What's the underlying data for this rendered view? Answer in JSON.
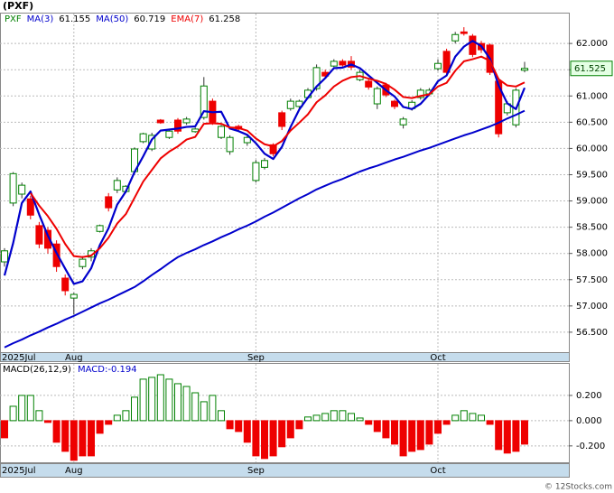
{
  "chart_data": [
    {
      "type": "candlestick",
      "title": "(PXF)",
      "categories": [
        "2025Jul",
        null,
        null,
        null,
        null,
        null,
        null,
        null,
        "Aug",
        null,
        null,
        null,
        null,
        null,
        null,
        null,
        null,
        null,
        null,
        null,
        null,
        null,
        null,
        null,
        null,
        null,
        null,
        null,
        null,
        "Sep",
        null,
        null,
        null,
        null,
        null,
        null,
        null,
        null,
        null,
        null,
        null,
        null,
        null,
        null,
        null,
        null,
        null,
        null,
        null,
        null,
        "Oct",
        null,
        null,
        null,
        null,
        null,
        null,
        null,
        null,
        null,
        null
      ],
      "ylim": [
        56.12,
        62.57
      ],
      "yticks": [
        {
          "value": 56.5,
          "label": "56.500"
        },
        {
          "value": 57,
          "label": "57.000"
        },
        {
          "value": 57.5,
          "label": "57.500"
        },
        {
          "value": 58,
          "label": "58.000"
        },
        {
          "value": 58.5,
          "label": "58.500"
        },
        {
          "value": 59,
          "label": "59.000"
        },
        {
          "value": 59.5,
          "label": "59.500"
        },
        {
          "value": 60,
          "label": "60.000"
        },
        {
          "value": 60.5,
          "label": "60.500"
        },
        {
          "value": 61,
          "label": "61.000"
        },
        {
          "value": 61.5,
          "label": "61.500"
        },
        {
          "value": 62,
          "label": "62.000"
        }
      ],
      "grid": true,
      "candles": {
        "name": "PXF",
        "color": "#008000",
        "down_color": "#ee0000",
        "last_label": "61.525",
        "open": [
          57.84,
          58.96,
          59.13,
          59.04,
          58.53,
          58.44,
          58.18,
          57.53,
          57.15,
          57.75,
          57.93,
          58.42,
          59.08,
          59.21,
          59.18,
          59.56,
          60.13,
          59.99,
          60.54,
          60.21,
          60.54,
          60.49,
          60.32,
          60.59,
          60.9,
          60.21,
          59.94,
          60.42,
          60.11,
          59.39,
          59.64,
          60.07,
          60.68,
          60.76,
          60.8,
          60.97,
          61.14,
          61.45,
          61.57,
          61.66,
          61.66,
          61.31,
          61.28,
          60.85,
          61.21,
          60.9,
          60.45,
          60.76,
          60.97,
          61.04,
          61.52,
          61.85,
          62.05,
          62.22,
          62.14,
          62.0,
          61.97,
          61.28,
          60.68,
          60.45,
          61.49
        ],
        "high": [
          58.1,
          59.55,
          59.35,
          59.1,
          58.6,
          58.5,
          58.25,
          57.6,
          57.25,
          57.95,
          58.1,
          58.55,
          59.15,
          59.45,
          59.3,
          60.02,
          60.3,
          60.3,
          60.56,
          60.36,
          60.58,
          60.6,
          60.4,
          61.36,
          60.95,
          60.45,
          60.25,
          60.45,
          60.25,
          59.78,
          59.82,
          60.1,
          60.72,
          60.95,
          60.93,
          61.15,
          61.6,
          61.5,
          61.7,
          61.7,
          61.76,
          61.5,
          61.32,
          61.18,
          61.25,
          60.93,
          60.6,
          60.92,
          61.15,
          61.15,
          61.7,
          61.9,
          62.22,
          62.31,
          62.18,
          62.05,
          62.0,
          61.35,
          60.9,
          61.15,
          61.65
        ],
        "low": [
          57.75,
          58.9,
          59.05,
          58.65,
          58.1,
          58.0,
          57.65,
          57.2,
          56.84,
          57.7,
          57.85,
          58.4,
          58.8,
          59.15,
          59.15,
          59.5,
          60.1,
          59.95,
          60.47,
          60.18,
          60.28,
          60.45,
          60.3,
          60.55,
          60.45,
          60.18,
          59.88,
          60.33,
          60.05,
          59.35,
          59.6,
          59.85,
          60.35,
          60.72,
          60.75,
          60.94,
          61.1,
          61.35,
          61.55,
          61.56,
          61.5,
          61.28,
          61.12,
          60.75,
          60.98,
          60.75,
          60.38,
          60.72,
          60.93,
          61.0,
          61.48,
          61.4,
          62.0,
          62.15,
          61.74,
          61.82,
          61.4,
          60.21,
          60.63,
          60.4,
          61.45
        ],
        "close": [
          58.05,
          59.52,
          59.3,
          58.73,
          58.18,
          58.1,
          57.75,
          57.29,
          57.22,
          57.89,
          58.05,
          58.53,
          58.87,
          59.39,
          59.28,
          59.99,
          60.28,
          60.25,
          60.49,
          60.33,
          60.33,
          60.56,
          60.37,
          61.19,
          60.5,
          60.42,
          60.21,
          60.37,
          60.21,
          59.73,
          59.77,
          59.9,
          60.42,
          60.9,
          60.9,
          61.11,
          61.54,
          61.38,
          61.66,
          61.59,
          61.55,
          61.45,
          61.17,
          61.14,
          61.02,
          60.8,
          60.56,
          60.88,
          61.11,
          61.11,
          61.62,
          61.45,
          62.17,
          62.19,
          61.79,
          61.88,
          61.45,
          60.28,
          60.85,
          61.11,
          61.525
        ]
      },
      "series": [
        {
          "name": "MA(3)",
          "color": "#0000cc",
          "last_label": "61.155",
          "values": [
            57.58,
            58.2,
            58.96,
            59.18,
            58.74,
            58.34,
            58.01,
            57.71,
            57.42,
            57.47,
            57.72,
            58.16,
            58.48,
            58.93,
            59.18,
            59.55,
            59.85,
            60.17,
            60.34,
            60.36,
            60.38,
            60.41,
            60.42,
            60.71,
            60.69,
            60.7,
            60.38,
            60.33,
            60.26,
            60.1,
            59.9,
            59.8,
            60.03,
            60.41,
            60.74,
            60.97,
            61.18,
            61.34,
            61.53,
            61.54,
            61.6,
            61.53,
            61.39,
            61.25,
            61.11,
            60.99,
            60.79,
            60.75,
            60.85,
            61.03,
            61.28,
            61.39,
            61.75,
            61.94,
            62.05,
            61.95,
            61.71,
            61.2,
            60.86,
            60.75,
            61.155
          ]
        },
        {
          "name": "MA(50)",
          "color": "#0000cc",
          "last_label": "60.719",
          "values": [
            56.21,
            56.29,
            56.36,
            56.44,
            56.51,
            56.59,
            56.66,
            56.74,
            56.81,
            56.89,
            56.97,
            57.05,
            57.12,
            57.2,
            57.28,
            57.36,
            57.47,
            57.59,
            57.7,
            57.82,
            57.93,
            58.01,
            58.08,
            58.16,
            58.23,
            58.31,
            58.38,
            58.46,
            58.53,
            58.61,
            58.7,
            58.78,
            58.87,
            58.96,
            59.05,
            59.13,
            59.22,
            59.29,
            59.36,
            59.42,
            59.49,
            59.56,
            59.62,
            59.67,
            59.73,
            59.79,
            59.84,
            59.9,
            59.96,
            60.01,
            60.07,
            60.13,
            60.19,
            60.25,
            60.3,
            60.36,
            60.42,
            60.49,
            60.57,
            60.64,
            60.719
          ]
        },
        {
          "name": "EMA(7)",
          "color": "#ee0000",
          "last_label": "61.258",
          "values": [
            null,
            null,
            null,
            59.15,
            58.91,
            58.71,
            58.47,
            58.18,
            57.95,
            57.93,
            57.96,
            58.1,
            58.3,
            58.57,
            58.75,
            59.06,
            59.37,
            59.59,
            59.81,
            59.94,
            60.04,
            60.17,
            60.22,
            60.47,
            60.48,
            60.47,
            60.4,
            60.39,
            60.34,
            60.19,
            60.08,
            60.04,
            60.14,
            60.34,
            60.49,
            60.65,
            60.88,
            61.01,
            61.18,
            61.29,
            61.36,
            61.38,
            61.33,
            61.29,
            61.23,
            61.12,
            60.98,
            60.96,
            61.0,
            61.03,
            61.18,
            61.25,
            61.48,
            61.66,
            61.7,
            61.75,
            61.67,
            61.32,
            61.2,
            61.18,
            61.258
          ]
        }
      ]
    },
    {
      "type": "bar",
      "title": "MACD(26,12,9)",
      "subtitle": "MACD:-0.194",
      "categories": [
        "2025Jul",
        null,
        null,
        null,
        null,
        null,
        null,
        null,
        "Aug",
        null,
        null,
        null,
        null,
        null,
        null,
        null,
        null,
        null,
        null,
        null,
        null,
        null,
        null,
        null,
        null,
        null,
        null,
        null,
        null,
        "Sep",
        null,
        null,
        null,
        null,
        null,
        null,
        null,
        null,
        null,
        null,
        null,
        null,
        null,
        null,
        null,
        null,
        null,
        null,
        null,
        null,
        "Oct",
        null,
        null,
        null,
        null,
        null,
        null,
        null,
        null,
        null,
        null
      ],
      "ylim": [
        -0.33,
        0.45
      ],
      "yticks": [
        {
          "value": -0.2,
          "label": "-0.200"
        },
        {
          "value": 0,
          "label": "0.000"
        },
        {
          "value": 0.2,
          "label": "0.200"
        }
      ],
      "grid": true,
      "color": "#008000",
      "negative_color": "#ee0000",
      "values": [
        -0.136,
        0.114,
        0.2,
        0.2,
        0.079,
        -0.014,
        -0.171,
        -0.243,
        -0.314,
        -0.279,
        -0.279,
        -0.1,
        -0.029,
        0.043,
        0.079,
        0.186,
        0.329,
        0.343,
        0.364,
        0.329,
        0.293,
        0.271,
        0.221,
        0.15,
        0.2,
        0.079,
        -0.064,
        -0.086,
        -0.171,
        -0.279,
        -0.3,
        -0.279,
        -0.207,
        -0.136,
        -0.064,
        0.029,
        0.043,
        0.057,
        0.079,
        0.079,
        0.057,
        0.021,
        -0.029,
        -0.086,
        -0.136,
        -0.186,
        -0.279,
        -0.243,
        -0.229,
        -0.186,
        -0.1,
        -0.029,
        0.043,
        0.079,
        0.057,
        0.043,
        -0.029,
        -0.229,
        -0.257,
        -0.243,
        -0.186
      ]
    }
  ],
  "footer": "© 12Stocks.com"
}
